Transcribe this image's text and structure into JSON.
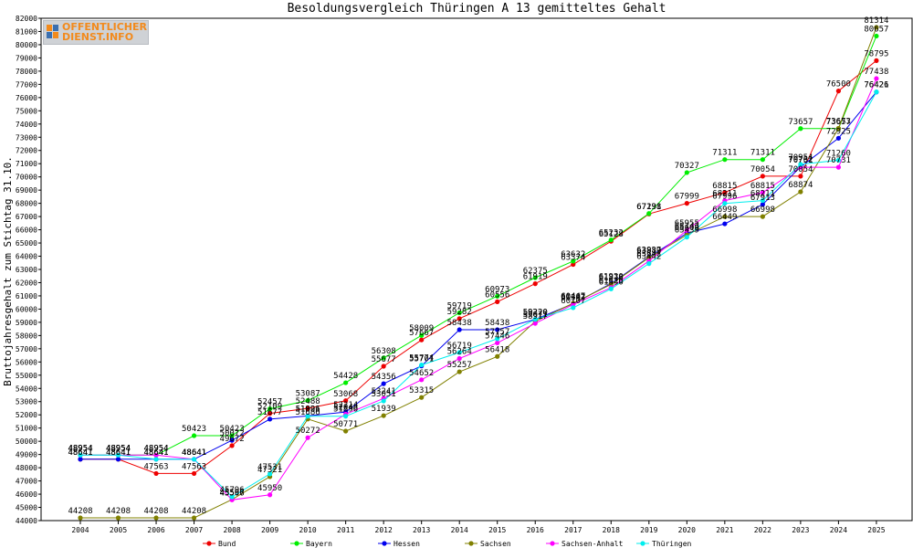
{
  "chart_data": {
    "type": "line",
    "title": "Besoldungsvergleich Thüringen A 13 gemitteltes Gehalt",
    "ylabel": "Bruttojahresgehalt zum Stichtag 31.10.",
    "xlabel": "",
    "ylim": [
      44000,
      82000
    ],
    "ystep": 1000,
    "grid": false,
    "legend_position": "bottom",
    "x": [
      "2004",
      "2005",
      "2006",
      "2007",
      "2008",
      "2009",
      "2010",
      "2011",
      "2012",
      "2013",
      "2014",
      "2015",
      "2016",
      "2017",
      "2018",
      "2019",
      "2020",
      "2021",
      "2022",
      "2023",
      "2024",
      "2025"
    ],
    "series": [
      {
        "name": "Bund",
        "color": "#ee0000",
        "values": [
          48641,
          48641,
          47563,
          47563,
          49672,
          52109,
          52488,
          53068,
          55677,
          57667,
          59282,
          60556,
          61919,
          63374,
          65128,
          67198,
          67999,
          68815,
          70054,
          70054,
          76500,
          78795
        ]
      },
      {
        "name": "Bayern",
        "color": "#00ee00",
        "values": [
          48954,
          48954,
          48954,
          50423,
          50423,
          52457,
          53087,
          54428,
          56308,
          58009,
          59719,
          60973,
          62375,
          63632,
          65232,
          67231,
          70327,
          71311,
          71311,
          73657,
          73657,
          80657
        ]
      },
      {
        "name": "Hessen",
        "color": "#0000ee",
        "values": [
          48641,
          48641,
          48641,
          48641,
          50072,
          51677,
          51921,
          52214,
          54356,
          55701,
          58438,
          58438,
          59220,
          60402,
          61930,
          63937,
          65743,
          66449,
          67913,
          70762,
          72925,
          76421
        ]
      },
      {
        "name": "Sachsen",
        "color": "#808000",
        "values": [
          44208,
          44208,
          44208,
          44208,
          45597,
          47321,
          51686,
          50771,
          51939,
          53315,
          55257,
          56418,
          59071,
          60447,
          61876,
          63889,
          65609,
          66998,
          66998,
          68874,
          73673,
          81314
        ]
      },
      {
        "name": "Sachsen-Anhalt",
        "color": "#ff00ff",
        "values": [
          48954,
          48954,
          48954,
          48641,
          45566,
          45950,
          50272,
          52048,
          53241,
          54652,
          56264,
          57446,
          58917,
          60347,
          61626,
          63642,
          65955,
          68211,
          68815,
          70731,
          70731,
          77438
        ]
      },
      {
        "name": "Thüringen",
        "color": "#00eeee",
        "values": [
          48954,
          48954,
          48641,
          48641,
          45796,
          47531,
          51896,
          51896,
          53051,
          55774,
          56719,
          57757,
          59220,
          60107,
          61530,
          63442,
          65439,
          67996,
          68211,
          70954,
          71260,
          76426
        ]
      }
    ]
  },
  "logo": {
    "line1": "OFFENTLICHER",
    "line2": "DIENST.INFO",
    "color": "#f28a1c"
  }
}
